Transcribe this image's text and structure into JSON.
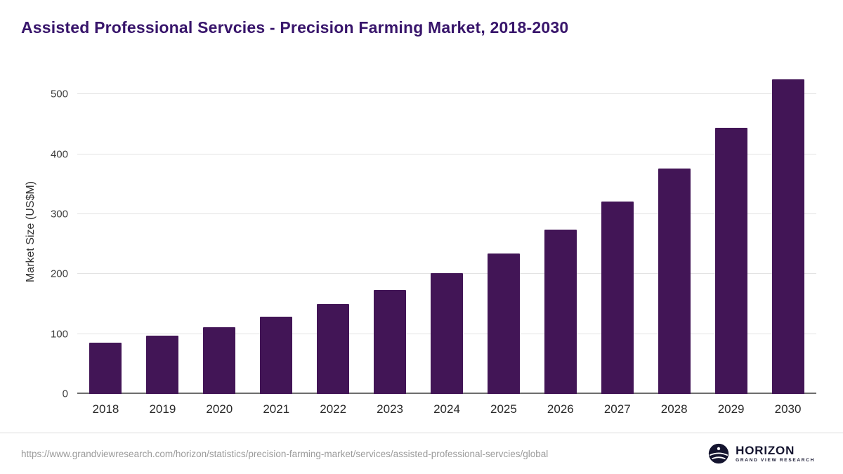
{
  "title": "Assisted Professional Servcies - Precision Farming Market, 2018-2030",
  "chart_data": {
    "type": "bar",
    "title": "Assisted Professional Servcies - Precision Farming Market, 2018-2030",
    "categories": [
      "2018",
      "2019",
      "2020",
      "2021",
      "2022",
      "2023",
      "2024",
      "2025",
      "2026",
      "2027",
      "2028",
      "2029",
      "2030"
    ],
    "values": [
      85,
      97,
      111,
      129,
      150,
      173,
      201,
      234,
      274,
      321,
      376,
      444,
      525
    ],
    "xlabel": "",
    "ylabel": "Market Size (US$M)",
    "ylim": [
      0,
      540
    ],
    "yticks": [
      0,
      100,
      200,
      300,
      400,
      500
    ],
    "grid": true,
    "legend": "none"
  },
  "colors": {
    "title": "#38156b",
    "bar": "#421556",
    "gridline": "#e3e3e3",
    "axis": "#6e6e6e",
    "url_text": "#9b9b9b",
    "logo_navy": "#14142f"
  },
  "footer": {
    "source_url": "https://www.grandviewresearch.com/horizon/statistics/precision-farming-market/services/assisted-professional-servcies/global",
    "logo": {
      "brand": "HORIZON",
      "tagline": "GRAND VIEW RESEARCH"
    }
  }
}
